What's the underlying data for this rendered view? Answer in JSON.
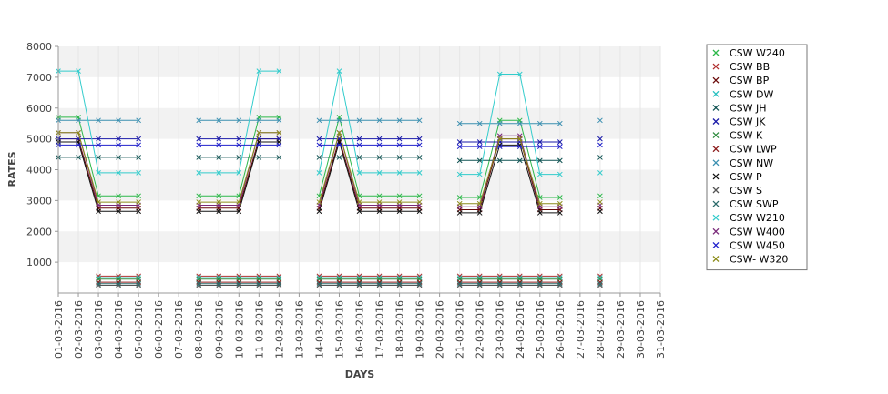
{
  "chart_data": {
    "type": "line",
    "xlabel": "DAYS",
    "ylabel": "RATES",
    "ylim": [
      0,
      8000
    ],
    "yticks": [
      1000,
      2000,
      3000,
      4000,
      5000,
      6000,
      7000,
      8000
    ],
    "grid": "horizontal alternating bands",
    "legend_position": "right",
    "categories": [
      "01-03-2016",
      "02-03-2016",
      "03-03-2016",
      "04-03-2016",
      "05-03-2016",
      "06-03-2016",
      "07-03-2016",
      "08-03-2016",
      "09-03-2016",
      "10-03-2016",
      "11-03-2016",
      "12-03-2016",
      "13-03-2016",
      "14-03-2016",
      "15-03-2016",
      "16-03-2016",
      "17-03-2016",
      "18-03-2016",
      "19-03-2016",
      "20-03-2016",
      "21-03-2016",
      "22-03-2016",
      "23-03-2016",
      "24-03-2016",
      "25-03-2016",
      "26-03-2016",
      "27-03-2016",
      "28-03-2016",
      "29-03-2016",
      "30-03-2016",
      "31-03-2016"
    ],
    "series": [
      {
        "name": "CSW  W240",
        "color": "#2db84a",
        "values": [
          5700,
          5700,
          3150,
          3150,
          3150,
          null,
          null,
          3150,
          3150,
          3150,
          5700,
          5700,
          null,
          3150,
          5700,
          3150,
          3150,
          3150,
          3150,
          null,
          3100,
          3100,
          5600,
          5600,
          3100,
          3100,
          null,
          3150,
          null,
          null,
          null
        ]
      },
      {
        "name": "CSW BB",
        "color": "#b03030",
        "values": [
          null,
          null,
          550,
          550,
          550,
          null,
          null,
          550,
          550,
          550,
          550,
          550,
          null,
          550,
          550,
          550,
          550,
          550,
          550,
          null,
          550,
          550,
          550,
          550,
          550,
          550,
          null,
          550,
          null,
          null,
          null
        ]
      },
      {
        "name": "CSW BP",
        "color": "#6a0a0a",
        "values": [
          5000,
          5000,
          2750,
          2750,
          2750,
          null,
          null,
          2750,
          2750,
          2750,
          5000,
          5000,
          null,
          2750,
          5000,
          2750,
          2750,
          2750,
          2750,
          null,
          2700,
          2700,
          5000,
          5000,
          2700,
          2700,
          null,
          2750,
          null,
          null,
          null
        ]
      },
      {
        "name": "CSW DW",
        "color": "#26c0c0",
        "values": [
          null,
          null,
          500,
          500,
          500,
          null,
          null,
          500,
          500,
          500,
          500,
          500,
          null,
          500,
          500,
          500,
          500,
          500,
          500,
          null,
          500,
          500,
          500,
          500,
          500,
          500,
          null,
          500,
          null,
          null,
          null
        ]
      },
      {
        "name": "CSW JH",
        "color": "#0f5252",
        "values": [
          4400,
          4400,
          4400,
          4400,
          4400,
          null,
          null,
          4400,
          4400,
          4400,
          4400,
          4400,
          null,
          4400,
          4400,
          4400,
          4400,
          4400,
          4400,
          null,
          4300,
          4300,
          4300,
          4300,
          4300,
          4300,
          null,
          4400,
          null,
          null,
          null
        ]
      },
      {
        "name": "CSW JK",
        "color": "#1a1aa8",
        "values": [
          5000,
          5000,
          5000,
          5000,
          5000,
          null,
          null,
          5000,
          5000,
          5000,
          5000,
          5000,
          null,
          5000,
          5000,
          5000,
          5000,
          5000,
          5000,
          null,
          4900,
          4900,
          4900,
          4900,
          4900,
          4900,
          null,
          5000,
          null,
          null,
          null
        ]
      },
      {
        "name": "CSW K",
        "color": "#2e8b3e",
        "values": [
          null,
          null,
          450,
          450,
          450,
          null,
          null,
          450,
          450,
          450,
          450,
          450,
          null,
          450,
          450,
          450,
          450,
          450,
          450,
          null,
          450,
          450,
          450,
          450,
          450,
          450,
          null,
          450,
          null,
          null,
          null
        ]
      },
      {
        "name": "CSW LWP",
        "color": "#8b1a1a",
        "values": [
          null,
          null,
          350,
          350,
          350,
          null,
          null,
          350,
          350,
          350,
          350,
          350,
          null,
          350,
          350,
          350,
          350,
          350,
          350,
          null,
          350,
          350,
          350,
          350,
          350,
          350,
          null,
          350,
          null,
          null,
          null
        ]
      },
      {
        "name": "CSW NW",
        "color": "#3a8fb0",
        "values": [
          5600,
          5600,
          5600,
          5600,
          5600,
          null,
          null,
          5600,
          5600,
          5600,
          5600,
          5600,
          null,
          5600,
          5600,
          5600,
          5600,
          5600,
          5600,
          null,
          5500,
          5500,
          5500,
          5500,
          5500,
          5500,
          null,
          5600,
          null,
          null,
          null
        ]
      },
      {
        "name": "CSW P",
        "color": "#111111",
        "values": [
          4900,
          4900,
          2650,
          2650,
          2650,
          null,
          null,
          2650,
          2650,
          2650,
          4900,
          4900,
          null,
          2650,
          4900,
          2650,
          2650,
          2650,
          2650,
          null,
          2600,
          2600,
          4800,
          4800,
          2600,
          2600,
          null,
          2650,
          null,
          null,
          null
        ]
      },
      {
        "name": "CSW S",
        "color": "#555555",
        "values": [
          null,
          null,
          250,
          250,
          250,
          null,
          null,
          250,
          250,
          250,
          250,
          250,
          null,
          250,
          250,
          250,
          250,
          250,
          250,
          null,
          250,
          250,
          250,
          250,
          250,
          250,
          null,
          250,
          null,
          null,
          null
        ]
      },
      {
        "name": "CSW SWP",
        "color": "#2b6b6b",
        "values": [
          null,
          null,
          300,
          300,
          300,
          null,
          null,
          300,
          300,
          300,
          300,
          300,
          null,
          300,
          300,
          300,
          300,
          300,
          300,
          null,
          300,
          300,
          300,
          300,
          300,
          300,
          null,
          300,
          null,
          null,
          null
        ]
      },
      {
        "name": "CSW W210",
        "color": "#33cccc",
        "values": [
          7200,
          7200,
          3900,
          3900,
          3900,
          null,
          null,
          3900,
          3900,
          3900,
          7200,
          7200,
          null,
          3900,
          7200,
          3900,
          3900,
          3900,
          3900,
          null,
          3850,
          3850,
          7100,
          7100,
          3850,
          3850,
          null,
          3900,
          null,
          null,
          null
        ]
      },
      {
        "name": "CSW W400",
        "color": "#7a2a7a",
        "values": [
          5200,
          5200,
          2850,
          2850,
          2850,
          null,
          null,
          2850,
          2850,
          2850,
          5200,
          5200,
          null,
          2850,
          5200,
          2850,
          2850,
          2850,
          2850,
          null,
          2800,
          2800,
          5100,
          5100,
          2800,
          2800,
          null,
          2850,
          null,
          null,
          null
        ]
      },
      {
        "name": "CSW W450",
        "color": "#2020cc",
        "values": [
          4800,
          4800,
          4800,
          4800,
          4800,
          null,
          null,
          4800,
          4800,
          4800,
          4800,
          4800,
          null,
          4800,
          4800,
          4800,
          4800,
          4800,
          4800,
          null,
          4750,
          4750,
          4750,
          4750,
          4750,
          4750,
          null,
          4800,
          null,
          null,
          null
        ]
      },
      {
        "name": "CSW- W320",
        "color": "#8c8c1a",
        "values": [
          5200,
          5200,
          2950,
          2950,
          2950,
          null,
          null,
          2950,
          2950,
          2950,
          5200,
          5200,
          null,
          2950,
          5200,
          2950,
          2950,
          2950,
          2950,
          null,
          2900,
          2900,
          5000,
          5000,
          2900,
          2900,
          null,
          2950,
          null,
          null,
          null
        ]
      }
    ]
  }
}
